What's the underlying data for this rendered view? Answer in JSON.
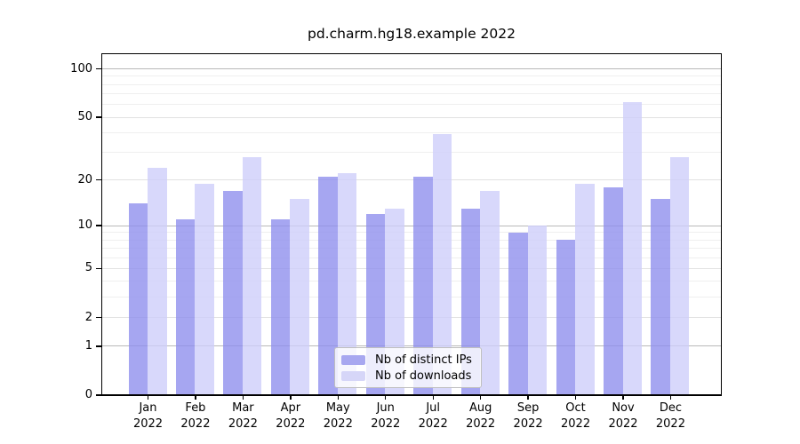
{
  "title": "pd.charm.hg18.example 2022",
  "chart_data": {
    "type": "bar",
    "title": "pd.charm.hg18.example 2022",
    "yscale": "symlog (position proportional to ln(1+y))",
    "grid": true,
    "legend_position": "lower center",
    "x_categories_line1": [
      "Jan",
      "Feb",
      "Mar",
      "Apr",
      "May",
      "Jun",
      "Jul",
      "Aug",
      "Sep",
      "Oct",
      "Nov",
      "Dec"
    ],
    "x_categories_line2": "2022",
    "categories": [
      "Jan 2022",
      "Feb 2022",
      "Mar 2022",
      "Apr 2022",
      "May 2022",
      "Jun 2022",
      "Jul 2022",
      "Aug 2022",
      "Sep 2022",
      "Oct 2022",
      "Nov 2022",
      "Dec 2022"
    ],
    "series": [
      {
        "name": "Nb of distinct IPs",
        "color": "#a8a8f0",
        "fill": "rgba(141,141,237,0.78)",
        "values": [
          14,
          11,
          17,
          11,
          21,
          12,
          21,
          13,
          9,
          8,
          18,
          15
        ]
      },
      {
        "name": "Nb of downloads",
        "color": "#d6d6f8",
        "fill": "rgba(205,205,250,0.78)",
        "values": [
          24,
          19,
          28,
          15,
          22,
          13,
          39,
          17,
          10,
          19,
          62,
          28
        ]
      }
    ],
    "y_major_ticks": [
      0,
      1,
      2,
      5,
      10,
      20,
      50,
      100
    ],
    "y_decade_gridlines": [
      1,
      10,
      100
    ],
    "y_minor_gridlines": [
      3,
      4,
      6,
      7,
      8,
      9,
      30,
      40,
      60,
      70,
      80,
      90
    ],
    "ylim": [
      0,
      125
    ]
  },
  "colors": {
    "grid_minor": "#efefef",
    "grid_major": "#e2e2e2",
    "grid_decade": "#b9b9b9",
    "spine": "#000000",
    "background": "#ffffff"
  }
}
